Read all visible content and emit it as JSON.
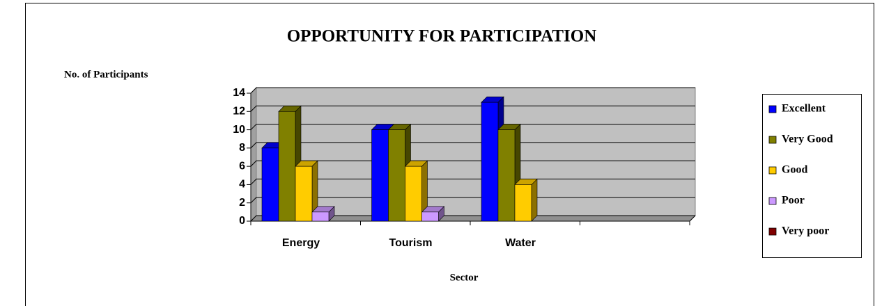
{
  "chart_data": {
    "type": "bar3d",
    "title": "OPPORTUNITY FOR PARTICIPATION",
    "y_label": "No. of Participants",
    "x_label": "Sector",
    "categories": [
      "Energy",
      "Tourism",
      "Water",
      null
    ],
    "series": [
      {
        "name": "Excellent",
        "color": "#0000ff",
        "values": [
          8,
          10,
          13,
          null
        ]
      },
      {
        "name": "Very Good",
        "color": "#808000",
        "values": [
          12,
          10,
          10,
          null
        ]
      },
      {
        "name": "Good",
        "color": "#ffcc00",
        "values": [
          6,
          6,
          4,
          null
        ]
      },
      {
        "name": "Poor",
        "color": "#cc99ff",
        "values": [
          1,
          1,
          0,
          null
        ]
      },
      {
        "name": "Very poor",
        "color": "#800000",
        "values": [
          0,
          0,
          0,
          null
        ]
      }
    ],
    "ylim": [
      0,
      14
    ],
    "yticks": [
      0,
      2,
      4,
      6,
      8,
      10,
      12,
      14
    ],
    "grid": true,
    "legend": "right"
  }
}
